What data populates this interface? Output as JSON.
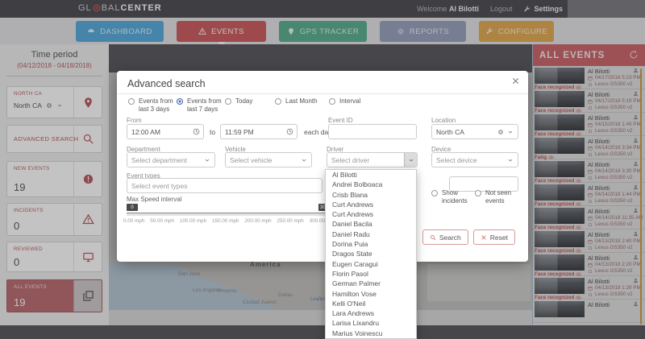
{
  "topbar": {
    "logo_pre": "GL",
    "logo_mid": "BAL",
    "logo_bold": "CENTER",
    "welcome_prefix": "Welcome",
    "user": "Al Bilotti",
    "logout_label": "Logout",
    "settings_label": "Settings"
  },
  "nav": {
    "items": [
      {
        "label": "DASHBOARD",
        "icon": "dashboard",
        "color": "#54aada",
        "active": false
      },
      {
        "label": "EVENTS",
        "icon": "warning-triangle",
        "color": "#cd5a5c",
        "active": true
      },
      {
        "label": "GPS TRACKER",
        "icon": "gps-pin",
        "color": "#57ad8d",
        "active": false
      },
      {
        "label": "REPORTS",
        "icon": "gear",
        "color": "#97a0bb",
        "active": false
      },
      {
        "label": "CONFIGURE",
        "icon": "wrench",
        "color": "#e2a94f",
        "active": false
      }
    ]
  },
  "sidebar": {
    "time_period_title": "Time period",
    "time_period_range": "(04/12/2018 - 04/18/2018)",
    "location_card": {
      "label": "NORTH CA",
      "value": "North CA"
    },
    "advanced_search_label": "ADVANCED SEARCH",
    "counters": [
      {
        "label": "NEW EVENTS",
        "value": "19",
        "icon": "alert-circle",
        "active": false
      },
      {
        "label": "INCIDENTS",
        "value": "0",
        "icon": "warning-triangle",
        "active": false
      },
      {
        "label": "REVIEWED",
        "value": "0",
        "icon": "monitor",
        "active": false
      },
      {
        "label": "ALL EVENTS",
        "value": "19",
        "icon": "copy",
        "active": true
      }
    ]
  },
  "map": {
    "labels": [
      "America",
      "San Jose",
      "Los Angeles",
      "Phoenix",
      "Dallas",
      "Ciudad Juarez"
    ],
    "attribution": "Leaflet"
  },
  "modal": {
    "title": "Advanced search",
    "period_options": [
      {
        "label": "Events from last 3 days",
        "selected": false
      },
      {
        "label": "Events from last 7 days",
        "selected": true
      },
      {
        "label": "Today",
        "selected": false
      },
      {
        "label": "Last Month",
        "selected": false
      },
      {
        "label": "Interval",
        "selected": false
      }
    ],
    "from_label": "From",
    "from_value": "12:00 AM",
    "to_label": "to",
    "to_value": "11:59 PM",
    "each_day_label": "each day",
    "event_id_label": "Event ID",
    "location_label": "Location",
    "location_value": "North CA",
    "department_label": "Department",
    "department_placeholder": "Select department",
    "vehicle_label": "Vehicle",
    "vehicle_placeholder": "Select vehicle",
    "driver_label": "Driver",
    "driver_placeholder": "Select driver",
    "device_label": "Device",
    "device_placeholder": "Select device",
    "event_types_label": "Event types",
    "event_types_placeholder": "Select event types",
    "max_speed_label": "Max Speed interval",
    "slider": {
      "min_handle": "0",
      "max_handle": "300",
      "ticks": [
        "0.00 mph",
        "50.00 mph",
        "100.00 mph",
        "150.00 mph",
        "200.00 mph",
        "250.00 mph",
        "300.00 mph"
      ]
    },
    "show_incidents_label": "Show incidents",
    "not_seen_label": "Not seen events",
    "search_button": "Search",
    "reset_button": "Reset",
    "driver_options": [
      "Al Bilotti",
      "Andrei Bolboaca",
      "Crisb Blana",
      "Curt Andrews",
      "Curt Andrews",
      "Daniel Bacila",
      "Daniel Radu",
      "Dorina Puia",
      "Dragos State",
      "Eugen Caragui",
      "Florin Pasol",
      "German Palmer",
      "Hamilton Vose",
      "Kelli O'Neil",
      "Lara Andrews",
      "Larisa Lixandru",
      "Marius Voinescu"
    ]
  },
  "events_panel": {
    "title": "ALL EVENTS",
    "items": [
      {
        "name": "Al Bilotti",
        "date": "04/17/2018 5:23 PM",
        "device": "Lexus GS350 v2",
        "tag": "Face recognized"
      },
      {
        "name": "Al Bilotti",
        "date": "04/17/2018 5:19 PM",
        "device": "Lexus GS350 v2",
        "tag": "Face recognized"
      },
      {
        "name": "Al Bilotti",
        "date": "04/15/2018 1:49 PM",
        "device": "Lexus GS350 v2",
        "tag": "Face recognized"
      },
      {
        "name": "Al Bilotti",
        "date": "04/14/2018 3:34 PM",
        "device": "Lexus GS350 v2",
        "tag": "Fatig"
      },
      {
        "name": "Al Bilotti",
        "date": "04/14/2018 3:30 PM",
        "device": "Lexus GS350 v2",
        "tag": "Face recognized"
      },
      {
        "name": "Al Bilotti",
        "date": "04/14/2018 1:44 PM",
        "device": "Lexus GS350 v2",
        "tag": "Face recognized"
      },
      {
        "name": "Al Bilotti",
        "date": "04/14/2018 11:35 AM",
        "device": "Lexus GS350 v2",
        "tag": "Face recognized"
      },
      {
        "name": "Al Bilotti",
        "date": "04/13/2018 2:40 PM",
        "device": "Lexus GS350 v2",
        "tag": "Face recognized"
      },
      {
        "name": "Al Bilotti",
        "date": "04/13/2018 2:20 PM",
        "device": "Lexus GS350 v2",
        "tag": "Face recognized"
      },
      {
        "name": "Al Bilotti",
        "date": "04/13/2018 1:28 PM",
        "device": "Lexus GS350 v2",
        "tag": "Face recognized"
      },
      {
        "name": "Al Bilotti",
        "date": "",
        "device": "",
        "tag": ""
      }
    ]
  }
}
